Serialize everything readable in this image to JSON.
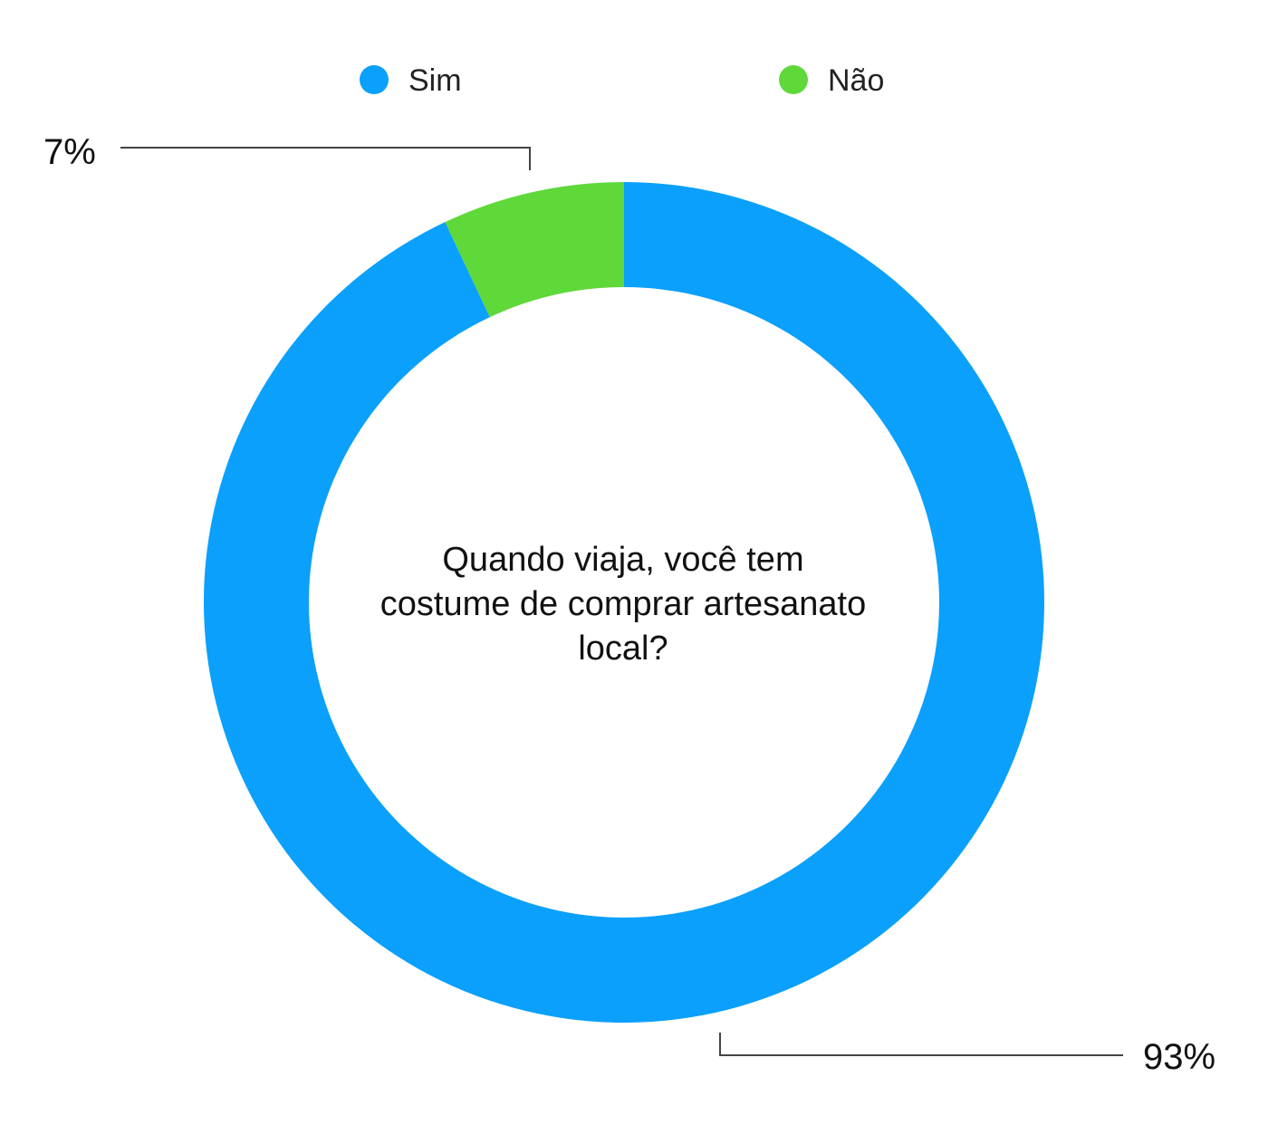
{
  "chart_data": {
    "type": "pie",
    "donut": true,
    "title_lines": [
      "Quando viaja, você tem",
      "costume de comprar artesanato",
      "local?"
    ],
    "categories": [
      "Sim",
      "Não"
    ],
    "values": [
      93,
      7
    ],
    "data_labels": [
      "93%",
      "7%"
    ],
    "colors": [
      "#0aa0fb",
      "#5fd83a"
    ],
    "legend_position": "top"
  }
}
